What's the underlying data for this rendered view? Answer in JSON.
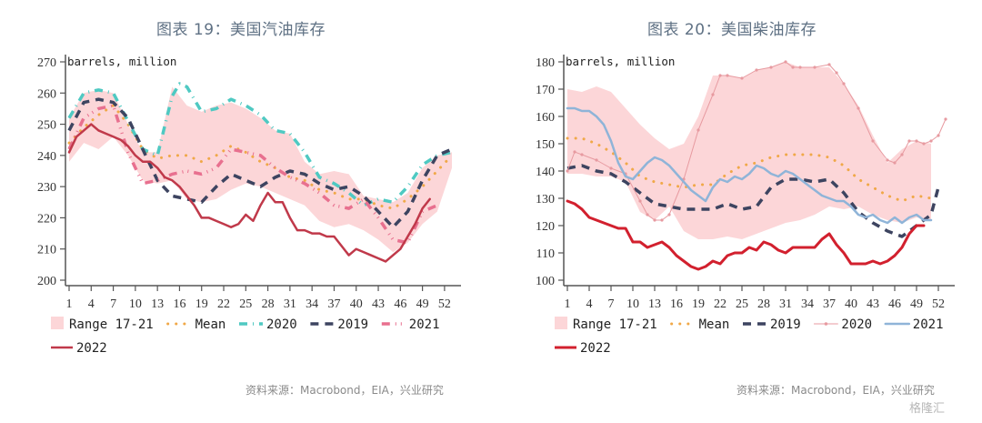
{
  "titles": [
    "图表 19：美国汽油库存",
    "图表 20：美国柴油库存"
  ],
  "sources": [
    "资料来源：Macrobond，EIA，兴业研究",
    "资料来源：Macrobond，EIA，兴业研究"
  ],
  "watermark": "格隆汇",
  "chart_data": [
    {
      "type": "line",
      "title": "图表 19：美国汽油库存",
      "ylabel": "barrels, million",
      "xlabel": "",
      "ylim": [
        200,
        270
      ],
      "yticks": [
        200,
        210,
        220,
        230,
        240,
        250,
        260,
        270
      ],
      "xlim": [
        1,
        53
      ],
      "xticks": [
        1,
        4,
        7,
        10,
        13,
        16,
        19,
        22,
        25,
        28,
        31,
        34,
        37,
        40,
        43,
        46,
        49,
        52
      ],
      "legend_position": "bottom",
      "range": {
        "name": "Range 17-21",
        "color": "#fcd6d8",
        "x": [
          1,
          3,
          5,
          7,
          9,
          11,
          13,
          15,
          17,
          19,
          21,
          23,
          25,
          27,
          29,
          31,
          33,
          35,
          37,
          39,
          41,
          43,
          45,
          47,
          49,
          51,
          53
        ],
        "low": [
          238,
          244,
          242,
          246,
          240,
          232,
          231,
          232,
          226,
          225,
          226,
          229,
          231,
          230,
          228,
          226,
          224,
          219,
          217,
          218,
          216,
          213,
          209,
          212,
          218,
          222,
          236
        ],
        "high": [
          252,
          260,
          261,
          260,
          250,
          241,
          241,
          262,
          256,
          254,
          256,
          257,
          255,
          252,
          248,
          247,
          238,
          234,
          235,
          234,
          227,
          226,
          225,
          228,
          236,
          240,
          241
        ]
      },
      "series": [
        {
          "name": "Mean",
          "color": "#f0a848",
          "style": "dotted",
          "x": [
            1,
            3,
            5,
            7,
            9,
            11,
            13,
            15,
            17,
            19,
            21,
            23,
            25,
            27,
            29,
            31,
            33,
            35,
            37,
            39,
            41,
            43,
            45,
            47,
            49,
            51,
            53
          ],
          "y": [
            244,
            249,
            253,
            256,
            250,
            242,
            239,
            240,
            240,
            238,
            240,
            243,
            241,
            238,
            236,
            233,
            232,
            229,
            228,
            226,
            226,
            224,
            223,
            226,
            230,
            235,
            240
          ]
        },
        {
          "name": "2020",
          "color": "#4fc9c2",
          "style": "dashdot",
          "x": [
            1,
            3,
            5,
            7,
            9,
            11,
            13,
            15,
            16,
            17,
            19,
            21,
            23,
            25,
            27,
            29,
            31,
            33,
            35,
            37,
            39,
            41,
            43,
            45,
            47,
            49,
            51,
            53
          ],
          "y": [
            252,
            260,
            261,
            260,
            251,
            242,
            240,
            259,
            263,
            262,
            254,
            255,
            258,
            256,
            253,
            248,
            247,
            241,
            233,
            231,
            228,
            224,
            226,
            225,
            230,
            237,
            240,
            241
          ]
        },
        {
          "name": "2019",
          "color": "#3d4460",
          "style": "dashed",
          "x": [
            1,
            3,
            5,
            7,
            9,
            11,
            13,
            15,
            17,
            19,
            21,
            23,
            25,
            27,
            29,
            31,
            33,
            35,
            37,
            39,
            41,
            43,
            45,
            47,
            49,
            51,
            53
          ],
          "y": [
            248,
            257,
            258,
            257,
            252,
            242,
            232,
            227,
            226,
            225,
            230,
            234,
            232,
            230,
            233,
            235,
            234,
            231,
            229,
            230,
            227,
            222,
            217,
            222,
            232,
            240,
            242
          ]
        },
        {
          "name": "2021",
          "color": "#e8708f",
          "style": "dashdotdot",
          "x": [
            1,
            3,
            5,
            7,
            9,
            11,
            13,
            15,
            17,
            19,
            21,
            23,
            25,
            27,
            29,
            31,
            33,
            35,
            37,
            39,
            41,
            43,
            45,
            47,
            49,
            51
          ],
          "y": [
            242,
            252,
            255,
            256,
            241,
            231,
            232,
            234,
            235,
            234,
            236,
            242,
            241,
            240,
            236,
            233,
            231,
            228,
            224,
            223,
            226,
            220,
            213,
            212,
            222,
            224
          ]
        },
        {
          "name": "2022",
          "color": "#c0394a",
          "style": "solid",
          "x": [
            1,
            2,
            3,
            4,
            5,
            6,
            7,
            8,
            9,
            10,
            11,
            12,
            13,
            14,
            15,
            16,
            17,
            18,
            19,
            20,
            21,
            22,
            23,
            24,
            25,
            26,
            27,
            28,
            29,
            30,
            31,
            32,
            33,
            34,
            35,
            36,
            37,
            38,
            39,
            40,
            41,
            42,
            43,
            44,
            45,
            46,
            47,
            48,
            49,
            50
          ],
          "y": [
            241,
            246,
            248,
            250,
            248,
            247,
            246,
            245,
            243,
            240,
            238,
            238,
            236,
            233,
            232,
            230,
            227,
            224,
            220,
            220,
            219,
            218,
            217,
            218,
            221,
            219,
            224,
            228,
            225,
            225,
            220,
            216,
            216,
            215,
            215,
            214,
            214,
            211,
            208,
            210,
            209,
            208,
            207,
            206,
            208,
            210,
            214,
            218,
            223,
            226
          ]
        }
      ]
    },
    {
      "type": "line",
      "title": "图表 20：美国柴油库存",
      "ylabel": "barrels, million",
      "xlabel": "",
      "ylim": [
        100,
        180
      ],
      "yticks": [
        100,
        110,
        120,
        130,
        140,
        150,
        160,
        170,
        180
      ],
      "xlim": [
        1,
        53
      ],
      "xticks": [
        1,
        4,
        7,
        10,
        13,
        16,
        19,
        22,
        25,
        28,
        31,
        34,
        37,
        40,
        43,
        46,
        49,
        52
      ],
      "legend_position": "bottom",
      "range": {
        "name": "Range 17-21",
        "color": "#fcd6d8",
        "x": [
          1,
          3,
          5,
          7,
          9,
          11,
          13,
          15,
          17,
          19,
          21,
          23,
          25,
          27,
          29,
          31,
          33,
          35,
          37,
          39,
          41,
          43,
          45,
          47,
          49,
          51
        ],
        "low": [
          139,
          139,
          138,
          138,
          136,
          125,
          122,
          127,
          118,
          115,
          115,
          116,
          115,
          117,
          119,
          121,
          122,
          124,
          127,
          126,
          127,
          124,
          122,
          121,
          123,
          122
        ],
        "high": [
          170,
          169,
          171,
          169,
          163,
          157,
          152,
          148,
          150,
          160,
          175,
          175,
          174,
          177,
          178,
          180,
          178,
          178,
          178,
          172,
          164,
          153,
          143,
          148,
          151,
          150
        ]
      },
      "series": [
        {
          "name": "Mean",
          "color": "#f0a848",
          "style": "dotted",
          "x": [
            1,
            3,
            5,
            7,
            9,
            11,
            13,
            15,
            17,
            19,
            21,
            23,
            25,
            27,
            29,
            31,
            33,
            35,
            37,
            39,
            41,
            43,
            45,
            47,
            49,
            51
          ],
          "y": [
            152,
            152,
            150,
            147,
            143,
            138,
            136,
            135,
            134,
            135,
            135,
            139,
            142,
            143,
            145,
            146,
            146,
            146,
            145,
            142,
            137,
            134,
            131,
            129,
            131,
            130
          ]
        },
        {
          "name": "2019",
          "color": "#3d4460",
          "style": "dashed",
          "x": [
            1,
            3,
            5,
            7,
            9,
            11,
            13,
            15,
            17,
            19,
            21,
            23,
            25,
            27,
            29,
            31,
            33,
            35,
            37,
            39,
            41,
            43,
            45,
            47,
            49,
            51,
            52
          ],
          "y": [
            141,
            142,
            140,
            139,
            136,
            132,
            128,
            127,
            126,
            126,
            126,
            128,
            126,
            127,
            134,
            137,
            137,
            136,
            137,
            132,
            125,
            121,
            118,
            116,
            120,
            124,
            134
          ]
        },
        {
          "name": "2020",
          "color": "#e79aa0",
          "style": "thin-marker",
          "x": [
            1,
            2,
            3,
            5,
            7,
            9,
            11,
            12,
            13,
            14,
            15,
            17,
            19,
            21,
            22,
            23,
            25,
            27,
            29,
            31,
            32,
            33,
            35,
            37,
            38,
            39,
            41,
            43,
            45,
            46,
            47,
            48,
            49,
            50,
            51,
            52,
            53
          ],
          "y": [
            140,
            147,
            146,
            144,
            141,
            139,
            129,
            124,
            122,
            122,
            124,
            137,
            155,
            168,
            175,
            175,
            174,
            177,
            178,
            180,
            178,
            178,
            178,
            179,
            176,
            172,
            163,
            151,
            144,
            143,
            146,
            151,
            151,
            150,
            151,
            153,
            159
          ]
        },
        {
          "name": "2021",
          "color": "#8fb4d8",
          "style": "solid",
          "x": [
            1,
            2,
            3,
            4,
            5,
            6,
            7,
            8,
            9,
            10,
            11,
            12,
            13,
            14,
            15,
            16,
            17,
            18,
            19,
            20,
            21,
            22,
            23,
            24,
            25,
            26,
            27,
            28,
            29,
            30,
            31,
            32,
            33,
            34,
            35,
            36,
            37,
            38,
            39,
            40,
            41,
            42,
            43,
            44,
            45,
            46,
            47,
            48,
            49,
            50,
            51
          ],
          "y": [
            163,
            163,
            162,
            162,
            160,
            157,
            151,
            143,
            138,
            137,
            140,
            143,
            145,
            144,
            142,
            139,
            136,
            133,
            131,
            129,
            134,
            137,
            136,
            138,
            137,
            139,
            142,
            141,
            139,
            138,
            140,
            139,
            137,
            135,
            133,
            131,
            130,
            129,
            129,
            127,
            124,
            123,
            124,
            122,
            121,
            123,
            121,
            123,
            124,
            122,
            122
          ]
        },
        {
          "name": "2022",
          "color": "#d2202e",
          "style": "solid-thick",
          "x": [
            1,
            2,
            3,
            4,
            5,
            6,
            7,
            8,
            9,
            10,
            11,
            12,
            13,
            14,
            15,
            16,
            17,
            18,
            19,
            20,
            21,
            22,
            23,
            24,
            25,
            26,
            27,
            28,
            29,
            30,
            31,
            32,
            33,
            34,
            35,
            36,
            37,
            38,
            39,
            40,
            41,
            42,
            43,
            44,
            45,
            46,
            47,
            48,
            49,
            50
          ],
          "y": [
            129,
            128,
            126,
            123,
            122,
            121,
            120,
            119,
            119,
            114,
            114,
            112,
            113,
            114,
            112,
            109,
            107,
            105,
            104,
            105,
            107,
            106,
            109,
            110,
            110,
            112,
            111,
            114,
            113,
            111,
            110,
            112,
            112,
            112,
            112,
            115,
            117,
            113,
            110,
            106,
            106,
            106,
            107,
            106,
            107,
            109,
            112,
            117,
            120,
            120
          ]
        }
      ]
    }
  ],
  "legends": [
    {
      "row1": [
        "Range 17-21",
        "Mean",
        "2020",
        "2019",
        "2021"
      ],
      "row2": [
        "2022"
      ]
    },
    {
      "row1": [
        "Range 17-21",
        "Mean",
        "2019",
        "2020",
        "2021"
      ],
      "row2": [
        "2022"
      ]
    }
  ]
}
